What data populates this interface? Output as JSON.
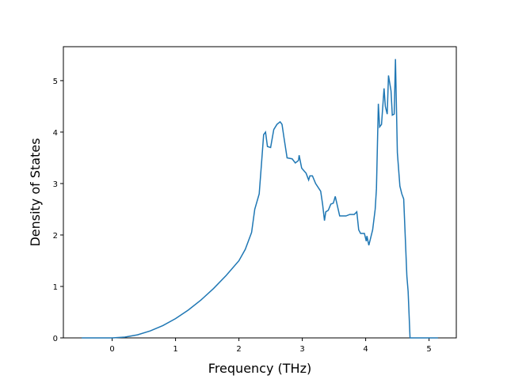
{
  "chart_data": {
    "type": "line",
    "xlabel": "Frequency (THz)",
    "ylabel": "Density of States",
    "color": "#1f77b4",
    "x": [
      -0.48,
      0,
      0.2,
      0.4,
      0.6,
      0.8,
      1.0,
      1.2,
      1.4,
      1.6,
      1.8,
      2.0,
      2.1,
      2.2,
      2.25,
      2.32,
      2.36,
      2.39,
      2.42,
      2.45,
      2.5,
      2.55,
      2.6,
      2.65,
      2.68,
      2.71,
      2.76,
      2.84,
      2.89,
      2.94,
      2.95,
      2.99,
      3.06,
      3.1,
      3.12,
      3.16,
      3.21,
      3.29,
      3.32,
      3.35,
      3.37,
      3.41,
      3.45,
      3.49,
      3.52,
      3.59,
      3.69,
      3.75,
      3.82,
      3.86,
      3.89,
      3.92,
      3.98,
      4.01,
      4.02,
      4.05,
      4.09,
      4.11,
      4.15,
      4.17,
      4.2,
      4.22,
      4.25,
      4.29,
      4.31,
      4.34,
      4.36,
      4.4,
      4.42,
      4.45,
      4.47,
      4.5,
      4.54,
      4.57,
      4.6,
      4.62,
      4.65,
      4.67,
      4.7,
      5.14
    ],
    "values": [
      0,
      0,
      0.015,
      0.06,
      0.135,
      0.24,
      0.375,
      0.54,
      0.735,
      0.96,
      1.215,
      1.5,
      1.72,
      2.05,
      2.5,
      2.8,
      3.45,
      3.95,
      4.0,
      3.72,
      3.7,
      4.05,
      4.15,
      4.2,
      4.15,
      3.9,
      3.5,
      3.48,
      3.4,
      3.45,
      3.55,
      3.3,
      3.2,
      3.07,
      3.15,
      3.15,
      3.0,
      2.85,
      2.6,
      2.28,
      2.45,
      2.48,
      2.6,
      2.62,
      2.75,
      2.37,
      2.37,
      2.4,
      2.4,
      2.45,
      2.1,
      2.03,
      2.03,
      1.88,
      1.98,
      1.8,
      2.0,
      2.1,
      2.5,
      2.9,
      4.55,
      4.1,
      4.15,
      4.85,
      4.5,
      4.35,
      5.1,
      4.8,
      4.33,
      4.35,
      5.42,
      3.6,
      2.95,
      2.8,
      2.7,
      2.1,
      1.2,
      0.9,
      0,
      0
    ],
    "xlim": [
      -0.77,
      5.43
    ],
    "ylim": [
      0,
      5.66
    ],
    "xticks": [
      0,
      1,
      2,
      3,
      4,
      5
    ],
    "yticks": [
      0,
      1,
      2,
      3,
      4,
      5
    ]
  }
}
